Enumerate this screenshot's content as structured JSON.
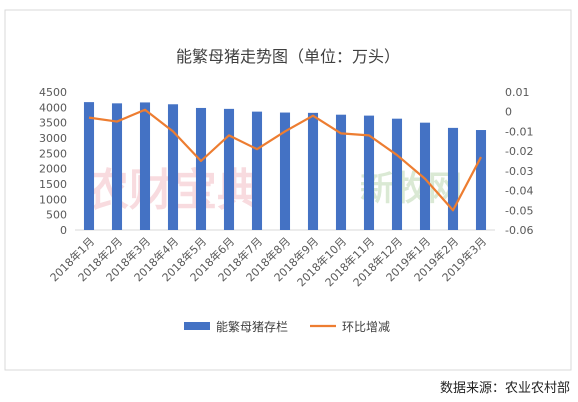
{
  "chart_data": {
    "type": "bar",
    "title": "能繁母猪走势图（单位：万头）",
    "categories": [
      "2018年1月",
      "2018年2月",
      "2018年3月",
      "2018年4月",
      "2018年5月",
      "2018年6月",
      "2018年7月",
      "2018年8月",
      "2018年9月",
      "2018年10月",
      "2018年11月",
      "2018年12月",
      "2019年1月",
      "2019年2月",
      "2019年3月"
    ],
    "series": [
      {
        "name": "能繁母猪存栏",
        "type": "bar",
        "axis": "left",
        "color": "#4472C4",
        "values": [
          4170,
          4130,
          4160,
          4100,
          3980,
          3950,
          3860,
          3830,
          3820,
          3760,
          3730,
          3630,
          3500,
          3330,
          3260
        ]
      },
      {
        "name": "环比增减",
        "type": "line",
        "axis": "right",
        "color": "#ED7D31",
        "values": [
          -0.003,
          -0.005,
          0.001,
          -0.01,
          -0.025,
          -0.012,
          -0.019,
          -0.01,
          -0.002,
          -0.011,
          -0.012,
          -0.022,
          -0.034,
          -0.05,
          -0.023
        ]
      }
    ],
    "y_left": {
      "min": 0,
      "max": 4500,
      "step": 500,
      "ticks": [
        "0",
        "500",
        "1000",
        "1500",
        "2000",
        "2500",
        "3000",
        "3500",
        "4000",
        "4500"
      ]
    },
    "y_right": {
      "min": -0.06,
      "max": 0.01,
      "step": 0.01,
      "ticks": [
        "-0.06",
        "-0.05",
        "-0.04",
        "-0.03",
        "-0.02",
        "-0.01",
        "0",
        "0.01"
      ]
    },
    "legend_position": "bottom",
    "grid": false
  },
  "source": "数据来源：农业农村部",
  "watermarks": [
    "农财宝典",
    "新牧网"
  ]
}
